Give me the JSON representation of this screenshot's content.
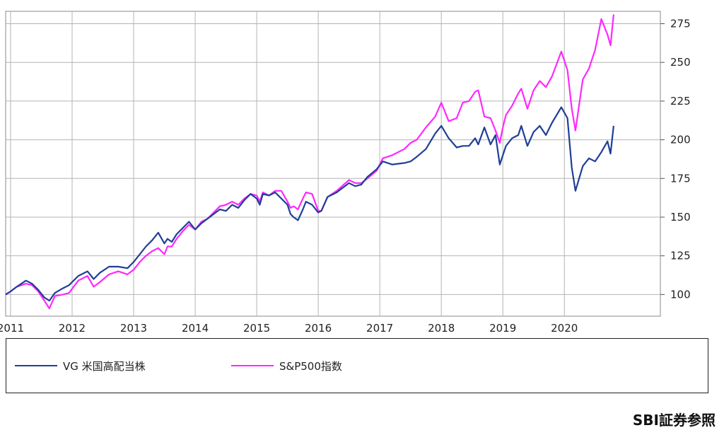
{
  "chart_data": {
    "type": "line",
    "title": "",
    "xlabel": "",
    "ylabel": "",
    "x_ticks": [
      "2011",
      "2012",
      "2013",
      "2014",
      "2015",
      "2016",
      "2017",
      "2018",
      "2019",
      "2020"
    ],
    "y_ticks": [
      100,
      125,
      150,
      175,
      200,
      225,
      250,
      275
    ],
    "xlim": [
      2010.92,
      2021.56
    ],
    "ylim": [
      86,
      283
    ],
    "grid": true,
    "legend_position": "bottom",
    "series": [
      {
        "name": "VG 米国高配当株",
        "color": "#1f3f97",
        "x": [
          2010.92,
          2011.0,
          2011.1,
          2011.25,
          2011.35,
          2011.45,
          2011.55,
          2011.63,
          2011.72,
          2011.85,
          2011.95,
          2012.1,
          2012.25,
          2012.35,
          2012.45,
          2012.6,
          2012.75,
          2012.9,
          2013.0,
          2013.1,
          2013.2,
          2013.3,
          2013.4,
          2013.5,
          2013.55,
          2013.62,
          2013.7,
          2013.8,
          2013.9,
          2014.0,
          2014.1,
          2014.2,
          2014.3,
          2014.4,
          2014.5,
          2014.6,
          2014.7,
          2014.8,
          2014.9,
          2015.0,
          2015.05,
          2015.1,
          2015.2,
          2015.3,
          2015.4,
          2015.5,
          2015.55,
          2015.6,
          2015.67,
          2015.75,
          2015.8,
          2015.9,
          2016.0,
          2016.05,
          2016.15,
          2016.3,
          2016.5,
          2016.6,
          2016.7,
          2016.8,
          2016.95,
          2017.05,
          2017.2,
          2017.4,
          2017.5,
          2017.6,
          2017.75,
          2017.9,
          2018.0,
          2018.12,
          2018.25,
          2018.35,
          2018.45,
          2018.55,
          2018.6,
          2018.7,
          2018.8,
          2018.88,
          2018.95,
          2019.0,
          2019.05,
          2019.15,
          2019.25,
          2019.3,
          2019.4,
          2019.5,
          2019.6,
          2019.7,
          2019.8,
          2019.95,
          2020.05,
          2020.12,
          2020.18,
          2020.3,
          2020.4,
          2020.5,
          2020.6,
          2020.7,
          2020.75,
          2020.8
        ],
        "y": [
          100,
          102,
          105,
          109,
          107,
          103,
          98,
          96,
          101,
          104,
          106,
          112,
          115,
          110,
          114,
          118,
          118,
          117,
          121,
          126,
          131,
          135,
          140,
          133,
          136,
          134,
          139,
          143,
          147,
          142,
          146,
          149,
          152,
          155,
          154,
          158,
          156,
          161,
          165,
          162,
          158,
          165,
          164,
          166,
          162,
          158,
          152,
          150,
          148,
          155,
          160,
          158,
          153,
          154,
          163,
          166,
          172,
          170,
          171,
          176,
          181,
          186,
          184,
          185,
          186,
          189,
          194,
          204,
          209,
          201,
          195,
          196,
          196,
          201,
          197,
          208,
          197,
          203,
          184,
          190,
          196,
          201,
          203,
          209,
          196,
          205,
          209,
          203,
          211,
          221,
          214,
          182,
          167,
          183,
          188,
          186,
          192,
          199,
          191,
          209
        ]
      },
      {
        "name": "S&P500指数",
        "color": "#ff28ff",
        "x": [
          2010.92,
          2011.0,
          2011.1,
          2011.25,
          2011.35,
          2011.45,
          2011.55,
          2011.63,
          2011.72,
          2011.85,
          2011.95,
          2012.1,
          2012.25,
          2012.35,
          2012.45,
          2012.6,
          2012.75,
          2012.9,
          2013.0,
          2013.1,
          2013.2,
          2013.3,
          2013.4,
          2013.5,
          2013.55,
          2013.62,
          2013.7,
          2013.8,
          2013.9,
          2014.0,
          2014.1,
          2014.2,
          2014.3,
          2014.4,
          2014.5,
          2014.6,
          2014.7,
          2014.8,
          2014.9,
          2015.0,
          2015.05,
          2015.1,
          2015.2,
          2015.3,
          2015.4,
          2015.5,
          2015.55,
          2015.6,
          2015.67,
          2015.75,
          2015.8,
          2015.9,
          2016.0,
          2016.05,
          2016.15,
          2016.3,
          2016.5,
          2016.6,
          2016.7,
          2016.8,
          2016.95,
          2017.05,
          2017.2,
          2017.4,
          2017.5,
          2017.6,
          2017.75,
          2017.9,
          2018.0,
          2018.12,
          2018.25,
          2018.35,
          2018.45,
          2018.55,
          2018.6,
          2018.7,
          2018.8,
          2018.88,
          2018.95,
          2019.0,
          2019.05,
          2019.15,
          2019.25,
          2019.3,
          2019.4,
          2019.5,
          2019.6,
          2019.7,
          2019.8,
          2019.95,
          2020.05,
          2020.12,
          2020.18,
          2020.3,
          2020.4,
          2020.5,
          2020.6,
          2020.7,
          2020.75,
          2020.8
        ],
        "y": [
          100,
          102,
          105,
          107,
          106,
          102,
          96,
          91,
          99,
          100,
          101,
          109,
          112,
          105,
          108,
          113,
          115,
          113,
          116,
          121,
          125,
          128,
          130,
          126,
          131,
          131,
          136,
          141,
          145,
          142,
          147,
          149,
          153,
          157,
          158,
          160,
          158,
          162,
          165,
          164,
          160,
          166,
          164,
          167,
          167,
          160,
          156,
          157,
          155,
          162,
          166,
          165,
          154,
          154,
          163,
          167,
          174,
          172,
          172,
          175,
          180,
          188,
          190,
          194,
          198,
          200,
          208,
          215,
          224,
          212,
          214,
          224,
          225,
          231,
          232,
          215,
          214,
          206,
          198,
          208,
          216,
          222,
          230,
          233,
          220,
          232,
          238,
          234,
          241,
          257,
          245,
          220,
          206,
          239,
          246,
          258,
          278,
          268,
          261,
          281
        ]
      }
    ]
  },
  "legend": {
    "items": [
      {
        "label": "VG 米国高配当株",
        "color": "#1f3f97"
      },
      {
        "label": "S&P500指数",
        "color": "#ff28ff"
      }
    ]
  },
  "source_text": "SBI証券参照"
}
